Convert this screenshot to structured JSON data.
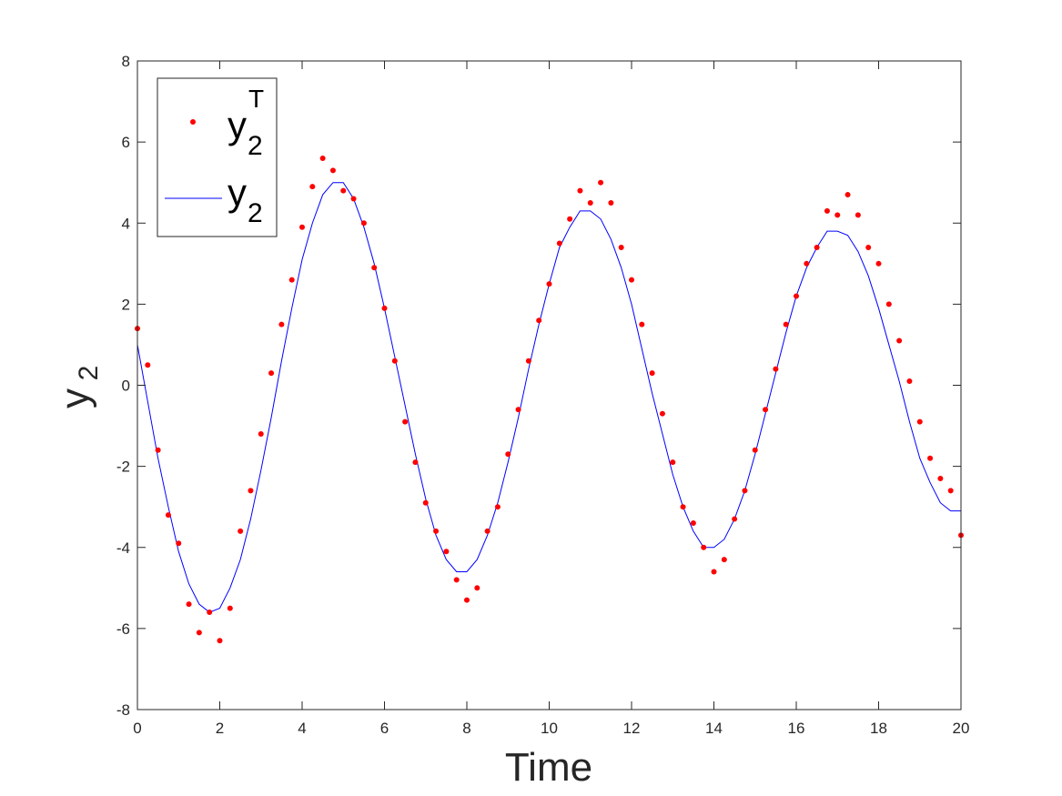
{
  "chart_data": {
    "type": "scatter",
    "xlabel": "Time",
    "ylabel": {
      "base": "y",
      "sub": "2"
    },
    "xlim": [
      0,
      20
    ],
    "ylim": [
      -8,
      8
    ],
    "xticks": [
      "0",
      "2",
      "4",
      "6",
      "8",
      "10",
      "12",
      "14",
      "16",
      "18",
      "20"
    ],
    "yticks": [
      "-8",
      "-6",
      "-4",
      "-2",
      "0",
      "2",
      "4",
      "6",
      "8"
    ],
    "grid": false,
    "legend_position": "top-left",
    "series": [
      {
        "name": {
          "base": "y",
          "sub": "2",
          "sup": "T"
        },
        "kind": "scatter",
        "color": "#ff0000",
        "x": [
          0,
          0.25,
          0.5,
          0.75,
          1,
          1.25,
          1.5,
          1.75,
          2,
          2.25,
          2.5,
          2.75,
          3,
          3.25,
          3.5,
          3.75,
          4,
          4.25,
          4.5,
          4.75,
          5,
          5.25,
          5.5,
          5.75,
          6,
          6.25,
          6.5,
          6.75,
          7,
          7.25,
          7.5,
          7.75,
          8,
          8.25,
          8.5,
          8.75,
          9,
          9.25,
          9.5,
          9.75,
          10,
          10.25,
          10.5,
          10.75,
          11,
          11.25,
          11.5,
          11.75,
          12,
          12.25,
          12.5,
          12.75,
          13,
          13.25,
          13.5,
          13.75,
          14,
          14.25,
          14.5,
          14.75,
          15,
          15.25,
          15.5,
          15.75,
          16,
          16.25,
          16.5,
          16.75,
          17,
          17.25,
          17.5,
          17.75,
          18,
          18.25,
          18.5,
          18.75,
          19,
          19.25,
          19.5,
          19.75,
          20
        ],
        "y": [
          1.4,
          0.5,
          -1.6,
          -3.2,
          -3.9,
          -5.4,
          -6.1,
          -5.6,
          -6.3,
          -5.5,
          -3.6,
          -2.6,
          -1.2,
          0.3,
          1.5,
          2.6,
          3.9,
          4.9,
          5.6,
          5.3,
          4.8,
          4.6,
          4.0,
          2.9,
          1.9,
          0.6,
          -0.9,
          -1.9,
          -2.9,
          -3.6,
          -4.1,
          -4.8,
          -5.3,
          -5.0,
          -3.6,
          -3.0,
          -1.7,
          -0.6,
          0.6,
          1.6,
          2.5,
          3.5,
          4.1,
          4.8,
          4.5,
          5.0,
          4.5,
          3.4,
          2.6,
          1.5,
          0.3,
          -0.7,
          -1.9,
          -3.0,
          -3.4,
          -4.0,
          -4.6,
          -4.3,
          -3.3,
          -2.6,
          -1.6,
          -0.6,
          0.4,
          1.5,
          2.2,
          3.0,
          3.4,
          4.3,
          4.2,
          4.7,
          4.2,
          3.4,
          3.0,
          2.0,
          1.1,
          0.1,
          -0.9,
          -1.8,
          -2.3,
          -2.6,
          -3.7
        ]
      },
      {
        "name": {
          "base": "y",
          "sub": "2"
        },
        "kind": "line",
        "color": "#0000ff",
        "x": [
          0,
          0.25,
          0.5,
          0.75,
          1,
          1.25,
          1.5,
          1.75,
          2,
          2.25,
          2.5,
          2.75,
          3,
          3.25,
          3.5,
          3.75,
          4,
          4.25,
          4.5,
          4.75,
          5,
          5.25,
          5.5,
          5.75,
          6,
          6.25,
          6.5,
          6.75,
          7,
          7.25,
          7.5,
          7.75,
          8,
          8.25,
          8.5,
          8.75,
          9,
          9.25,
          9.5,
          9.75,
          10,
          10.25,
          10.5,
          10.75,
          11,
          11.25,
          11.5,
          11.75,
          12,
          12.25,
          12.5,
          12.75,
          13,
          13.25,
          13.5,
          13.75,
          14,
          14.25,
          14.5,
          14.75,
          15,
          15.25,
          15.5,
          15.75,
          16,
          16.25,
          16.5,
          16.75,
          17,
          17.25,
          17.5,
          17.75,
          18,
          18.25,
          18.5,
          18.75,
          19,
          19.25,
          19.5,
          19.75,
          20
        ],
        "y": [
          1.0,
          -0.4,
          -1.8,
          -3.0,
          -4.1,
          -4.9,
          -5.4,
          -5.6,
          -5.5,
          -5.0,
          -4.3,
          -3.3,
          -2.1,
          -0.8,
          0.6,
          1.9,
          3.1,
          4.0,
          4.7,
          5.0,
          5.0,
          4.6,
          3.9,
          3.0,
          1.9,
          0.7,
          -0.5,
          -1.7,
          -2.8,
          -3.7,
          -4.3,
          -4.6,
          -4.6,
          -4.3,
          -3.7,
          -2.9,
          -1.9,
          -0.8,
          0.4,
          1.5,
          2.5,
          3.4,
          3.9,
          4.3,
          4.3,
          4.1,
          3.6,
          2.9,
          2.0,
          0.9,
          -0.2,
          -1.2,
          -2.2,
          -3.0,
          -3.6,
          -4.0,
          -4.0,
          -3.8,
          -3.3,
          -2.6,
          -1.7,
          -0.7,
          0.3,
          1.3,
          2.2,
          2.9,
          3.4,
          3.8,
          3.8,
          3.7,
          3.3,
          2.7,
          1.9,
          1.0,
          0.1,
          -0.9,
          -1.8,
          -2.4,
          -2.9,
          -3.1,
          -3.1
        ]
      }
    ]
  }
}
